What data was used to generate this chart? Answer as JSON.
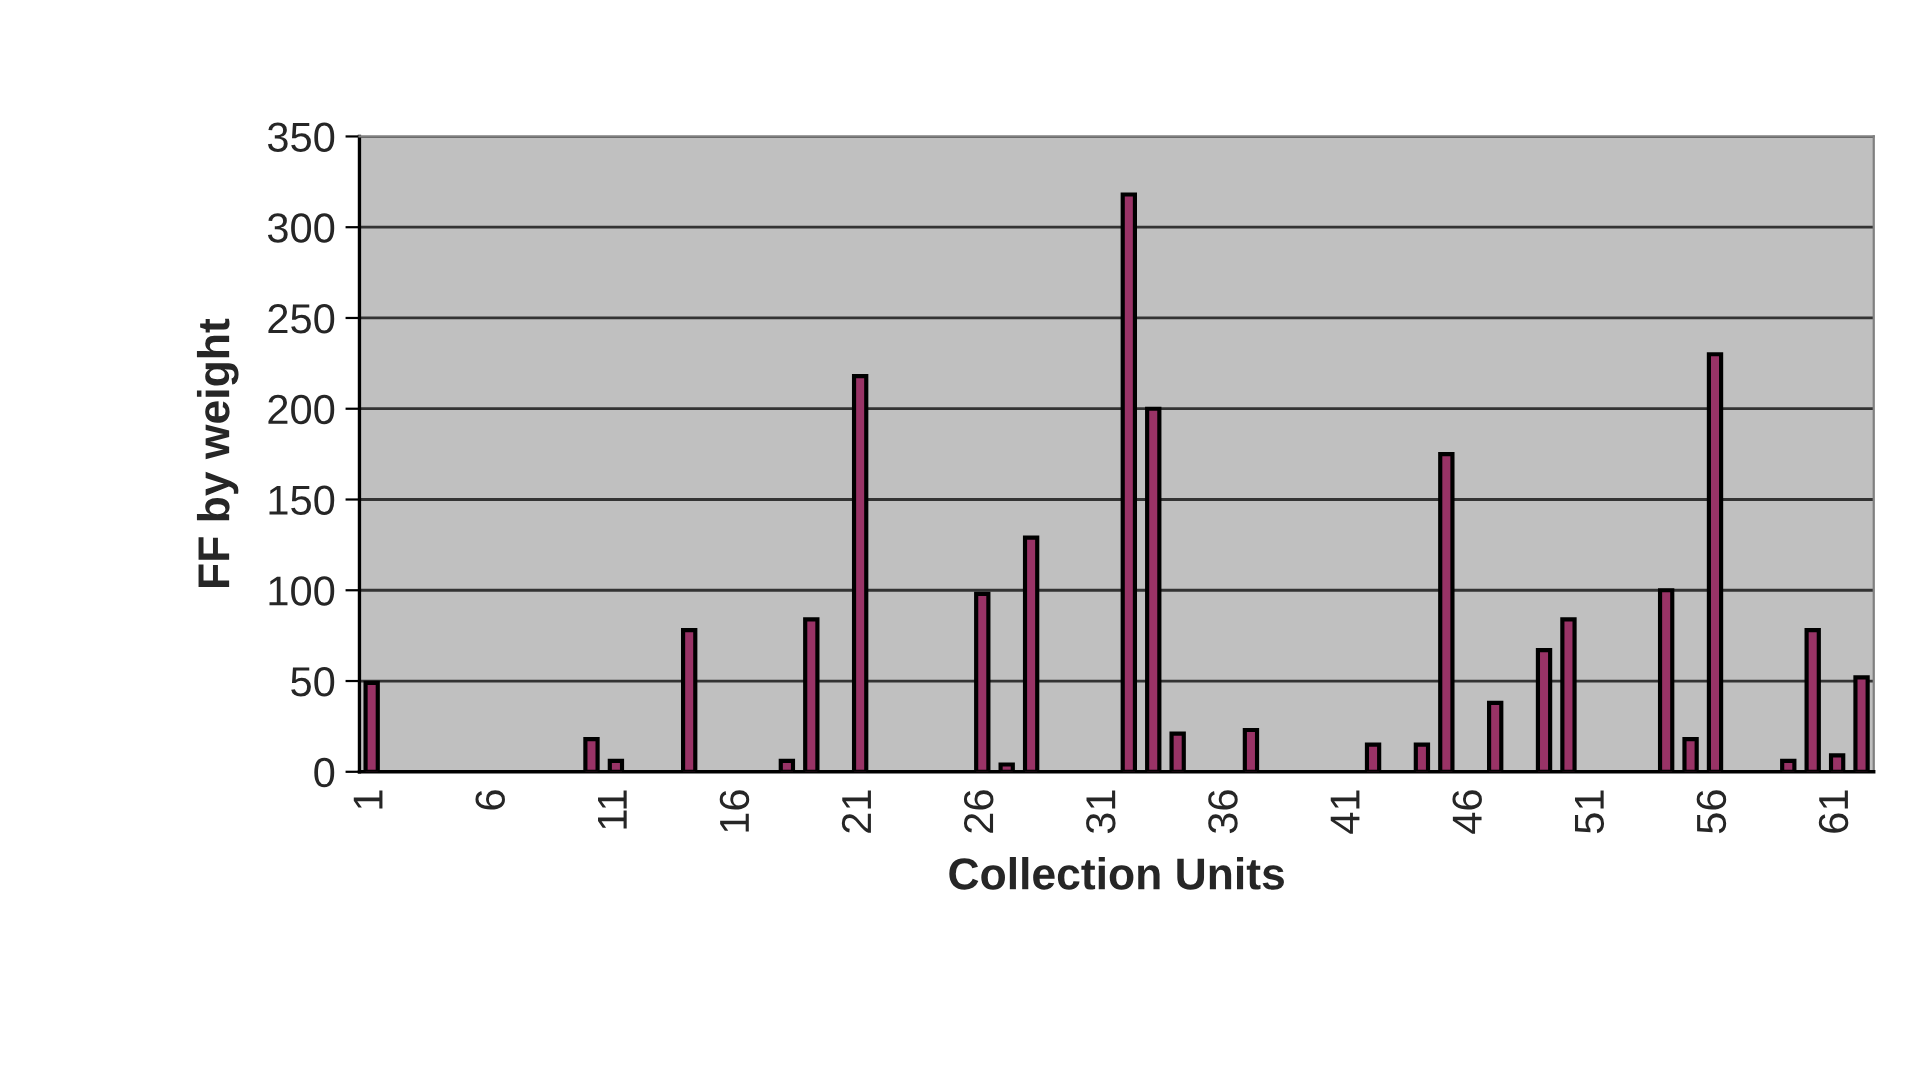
{
  "chart_data": {
    "type": "bar",
    "xlabel": "Collection Units",
    "ylabel": "FF by weight",
    "categories": [
      "1",
      null,
      null,
      null,
      null,
      "6",
      null,
      null,
      null,
      null,
      "11",
      null,
      null,
      null,
      null,
      "16",
      null,
      null,
      null,
      null,
      "21",
      null,
      null,
      null,
      null,
      "26",
      null,
      null,
      null,
      null,
      "31",
      null,
      null,
      null,
      null,
      "36",
      null,
      null,
      null,
      null,
      "41",
      null,
      null,
      null,
      null,
      "46",
      null,
      null,
      null,
      null,
      "51",
      null,
      null,
      null,
      null,
      "56",
      null,
      null,
      null,
      null,
      "61",
      null
    ],
    "values": [
      49,
      null,
      null,
      null,
      null,
      null,
      null,
      null,
      null,
      18,
      6,
      null,
      null,
      78,
      null,
      null,
      null,
      6,
      84,
      null,
      218,
      null,
      null,
      null,
      null,
      98,
      4,
      129,
      null,
      null,
      null,
      318,
      200,
      21,
      null,
      null,
      23,
      null,
      null,
      null,
      null,
      15,
      null,
      15,
      175,
      null,
      38,
      null,
      67,
      84,
      null,
      null,
      null,
      100,
      18,
      230,
      null,
      null,
      6,
      78,
      9,
      52
    ],
    "color": "#993366",
    "ylim": [
      0,
      350
    ],
    "yticks": [
      0,
      50,
      100,
      150,
      200,
      250,
      300,
      350
    ],
    "grid": "y"
  }
}
